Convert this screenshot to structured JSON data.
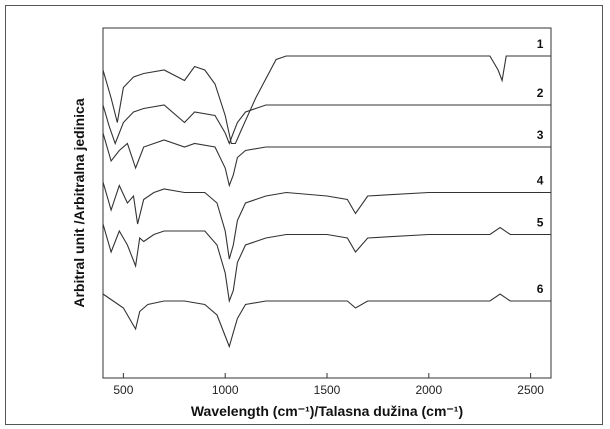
{
  "chart_data": {
    "type": "line",
    "xlabel": "Wavelength (cm⁻¹)/Talasna dužina (cm⁻¹)",
    "ylabel": "Arbitral unit /Arbitralna jedinica",
    "xlim": [
      400,
      2600
    ],
    "xticks": [
      500,
      1000,
      1500,
      2000,
      2500
    ],
    "ylim": [
      0,
      100
    ],
    "grid": false,
    "legend": "none",
    "line_color": "#333333",
    "series": [
      {
        "name": "1",
        "x": [
          400,
          440,
          470,
          500,
          550,
          600,
          700,
          800,
          850,
          900,
          950,
          1000,
          1030,
          1050,
          1080,
          1150,
          1250,
          1300,
          1500,
          1700,
          2000,
          2300,
          2340,
          2360,
          2380,
          2600
        ],
        "y": [
          88,
          80,
          73,
          83,
          86,
          87,
          88,
          85,
          89,
          88,
          84,
          75,
          67,
          67,
          71,
          80,
          91,
          92,
          92,
          92,
          92,
          92,
          88,
          85,
          92,
          92
        ]
      },
      {
        "name": "2",
        "x": [
          400,
          430,
          460,
          500,
          550,
          600,
          700,
          800,
          850,
          950,
          1000,
          1020,
          1040,
          1060,
          1100,
          1200,
          1300,
          1500,
          1700,
          2000,
          2350,
          2600
        ],
        "y": [
          78,
          72,
          67,
          73,
          76,
          77,
          78,
          73,
          76,
          75,
          70,
          67,
          70,
          73,
          76,
          78,
          78,
          78,
          78,
          78,
          78,
          78
        ]
      },
      {
        "name": "3",
        "x": [
          400,
          440,
          480,
          520,
          560,
          600,
          700,
          800,
          850,
          950,
          1000,
          1020,
          1040,
          1060,
          1100,
          1200,
          1300,
          1500,
          1700,
          2000,
          2350,
          2600
        ],
        "y": [
          70,
          62,
          65,
          67,
          60,
          66,
          68,
          66,
          67,
          66,
          60,
          55,
          58,
          63,
          65,
          66,
          66,
          66,
          66,
          66,
          66,
          66
        ]
      },
      {
        "name": "4",
        "x": [
          400,
          440,
          480,
          520,
          550,
          570,
          600,
          650,
          700,
          800,
          900,
          960,
          1000,
          1020,
          1040,
          1060,
          1100,
          1200,
          1300,
          1500,
          1600,
          1640,
          1700,
          2000,
          2350,
          2600
        ],
        "y": [
          56,
          48,
          55,
          50,
          52,
          44,
          51,
          53,
          54,
          53,
          53,
          50,
          42,
          34,
          38,
          45,
          50,
          52,
          53,
          52,
          51,
          47,
          52,
          53,
          53,
          53
        ]
      },
      {
        "name": "5",
        "x": [
          400,
          440,
          480,
          520,
          560,
          580,
          600,
          650,
          700,
          800,
          900,
          960,
          1000,
          1020,
          1040,
          1060,
          1100,
          1200,
          1300,
          1500,
          1600,
          1640,
          1700,
          2000,
          2300,
          2350,
          2400,
          2600
        ],
        "y": [
          44,
          36,
          42,
          38,
          32,
          40,
          39,
          41,
          42,
          42,
          42,
          38,
          30,
          22,
          25,
          33,
          38,
          40,
          41,
          41,
          40,
          36,
          40,
          41,
          41,
          43,
          41,
          41
        ]
      },
      {
        "name": "6",
        "x": [
          400,
          450,
          500,
          540,
          560,
          580,
          620,
          700,
          800,
          900,
          960,
          1000,
          1020,
          1040,
          1060,
          1100,
          1200,
          1300,
          1500,
          1600,
          1640,
          1700,
          2000,
          2300,
          2350,
          2400,
          2600
        ],
        "y": [
          24,
          22,
          20,
          16,
          14,
          19,
          21,
          22,
          22,
          21,
          18,
          12,
          9,
          13,
          17,
          21,
          22,
          22,
          22,
          22,
          20,
          22,
          22,
          22,
          24,
          22,
          22
        ]
      }
    ]
  }
}
